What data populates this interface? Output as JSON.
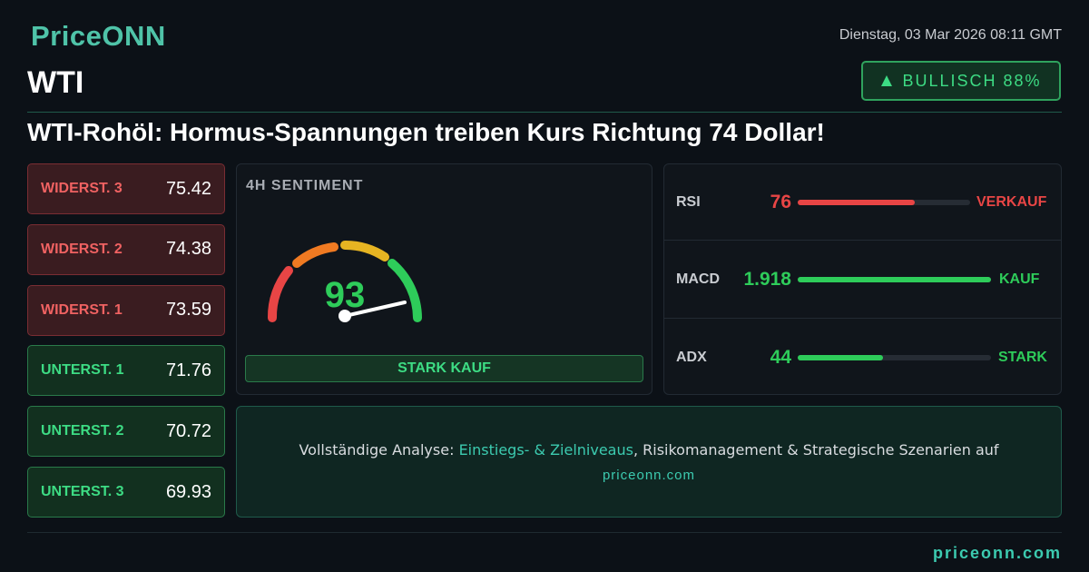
{
  "header": {
    "logo": "PriceONN",
    "date": "Dienstag, 03 Mar 2026 08:11 GMT",
    "symbol": "WTI",
    "badge": "BULLISCH 88%",
    "headline": "WTI-Rohöl: Hormus-Spannungen treiben Kurs Richtung 74 Dollar!"
  },
  "levels": [
    {
      "label": "WIDERST. 3",
      "value": 75.42
    },
    {
      "label": "WIDERST. 2",
      "value": 74.38
    },
    {
      "label": "WIDERST. 1",
      "value": 73.59
    },
    {
      "label": "UNTERST. 1",
      "value": 71.76
    },
    {
      "label": "UNTERST. 2",
      "value": 70.72
    },
    {
      "label": "UNTERST. 3",
      "value": 69.93
    }
  ],
  "sentiment": {
    "title": "4H SENTIMENT",
    "score": 93,
    "verdict": "STARK KAUF"
  },
  "indicators": [
    {
      "name": "RSI",
      "value": 76,
      "signal": "VERKAUF"
    },
    {
      "name": "MACD",
      "value": 1.918,
      "signal": "KAUF"
    },
    {
      "name": "ADX",
      "value": 44,
      "signal": "STARK"
    }
  ],
  "cta": {
    "lead": "Vollständige Analyse:",
    "highlight": "Einstiegs- & Zielniveaus",
    "rest": ", Risikomanagement & Strategische Szenarien auf",
    "site": "priceonn.com"
  },
  "footer": {
    "site": "priceonn.com"
  }
}
